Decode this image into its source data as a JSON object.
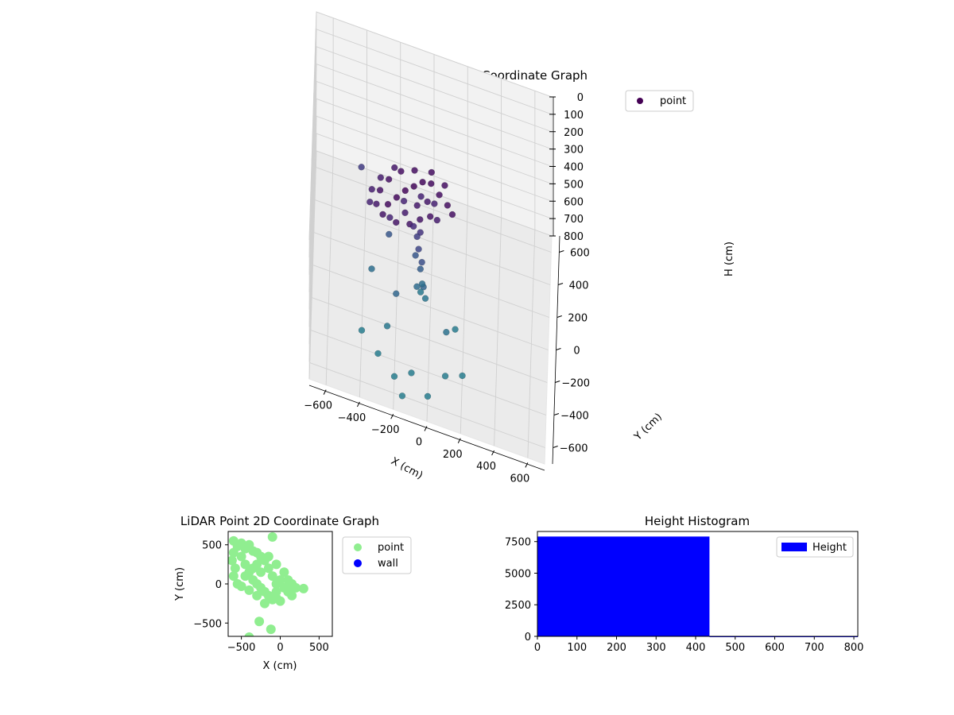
{
  "chart_data": [
    {
      "type": "scatter",
      "projection": "3d",
      "title": "LiDAR Point 3D Coordinate Graph",
      "xlabel": "X (cm)",
      "ylabel": "Y (cm)",
      "zlabel": "H (cm)",
      "xlim": [
        -700,
        700
      ],
      "ylim": [
        -700,
        700
      ],
      "zlim": [
        0,
        800
      ],
      "z_inverted": true,
      "xticks": [
        -600,
        -400,
        -200,
        0,
        200,
        400,
        600
      ],
      "yticks": [
        -600,
        -400,
        -200,
        0,
        200,
        400,
        600
      ],
      "zticks": [
        0,
        100,
        200,
        300,
        400,
        500,
        600,
        700,
        800
      ],
      "grid": true,
      "legend": {
        "placement": "top-right",
        "entries": [
          {
            "label": "point",
            "color": "#440154"
          }
        ]
      },
      "colormap": "viridis",
      "series": [
        {
          "name": "point",
          "points": [
            {
              "x": -250,
              "y": -100,
              "h": 200
            },
            {
              "x": -200,
              "y": -50,
              "h": 190
            },
            {
              "x": -150,
              "y": 0,
              "h": 180
            },
            {
              "x": -100,
              "y": 50,
              "h": 185
            },
            {
              "x": -50,
              "y": 100,
              "h": 190
            },
            {
              "x": 0,
              "y": 120,
              "h": 200
            },
            {
              "x": 50,
              "y": 80,
              "h": 210
            },
            {
              "x": 100,
              "y": 40,
              "h": 215
            },
            {
              "x": 130,
              "y": 0,
              "h": 220
            },
            {
              "x": -300,
              "y": 0,
              "h": 230
            },
            {
              "x": -250,
              "y": 80,
              "h": 225
            },
            {
              "x": -180,
              "y": 150,
              "h": 220
            },
            {
              "x": -100,
              "y": 180,
              "h": 215
            },
            {
              "x": 0,
              "y": 200,
              "h": 210
            },
            {
              "x": 80,
              "y": 160,
              "h": 220
            },
            {
              "x": -320,
              "y": -60,
              "h": 260
            },
            {
              "x": -280,
              "y": -120,
              "h": 250
            },
            {
              "x": -200,
              "y": -150,
              "h": 240
            },
            {
              "x": -120,
              "y": -120,
              "h": 250
            },
            {
              "x": -60,
              "y": -80,
              "h": 240
            },
            {
              "x": 0,
              "y": -50,
              "h": 230
            },
            {
              "x": -350,
              "y": 40,
              "h": 280
            },
            {
              "x": -300,
              "y": 120,
              "h": 270
            },
            {
              "x": -220,
              "y": 200,
              "h": 260
            },
            {
              "x": -150,
              "y": -40,
              "h": 270
            },
            {
              "x": -80,
              "y": 20,
              "h": 260
            },
            {
              "x": -20,
              "y": 60,
              "h": 255
            },
            {
              "x": 40,
              "y": -20,
              "h": 265
            },
            {
              "x": -360,
              "y": -20,
              "h": 300
            },
            {
              "x": -240,
              "y": -60,
              "h": 310
            },
            {
              "x": -160,
              "y": 60,
              "h": 300
            },
            {
              "x": -60,
              "y": 120,
              "h": 295
            },
            {
              "x": 20,
              "y": 100,
              "h": 290
            },
            {
              "x": -100,
              "y": -30,
              "h": 340
            },
            {
              "x": -60,
              "y": -10,
              "h": 380
            },
            {
              "x": -80,
              "y": 10,
              "h": 430
            },
            {
              "x": -70,
              "y": -20,
              "h": 470
            },
            {
              "x": -50,
              "y": -40,
              "h": 520
            },
            {
              "x": -90,
              "y": 30,
              "h": 560
            },
            {
              "x": -60,
              "y": 0,
              "h": 600
            },
            {
              "x": -40,
              "y": -60,
              "h": 640
            },
            {
              "x": -80,
              "y": -30,
              "h": 680
            },
            {
              "x": -50,
              "y": 20,
              "h": 700
            },
            {
              "x": -30,
              "y": -20,
              "h": 740
            },
            {
              "x": -60,
              "y": 40,
              "h": 770
            },
            {
              "x": -420,
              "y": 300,
              "h": 420
            },
            {
              "x": -250,
              "y": 100,
              "h": 560
            },
            {
              "x": -350,
              "y": 0,
              "h": 700
            },
            {
              "x": -200,
              "y": -150,
              "h": 650
            },
            {
              "x": 100,
              "y": -200,
              "h": 720
            },
            {
              "x": -250,
              "y": -250,
              "h": 760
            },
            {
              "x": 150,
              "y": -100,
              "h": 780
            },
            {
              "x": -400,
              "y": -300,
              "h": 790
            },
            {
              "x": -300,
              "y": -400,
              "h": 795
            },
            {
              "x": -100,
              "y": -450,
              "h": 790
            },
            {
              "x": 100,
              "y": -400,
              "h": 785
            },
            {
              "x": 200,
              "y": -350,
              "h": 795
            },
            {
              "x": -200,
              "y": -500,
              "h": 798
            },
            {
              "x": 0,
              "y": -550,
              "h": 796
            },
            {
              "x": -150,
              "y": -600,
              "h": 799
            }
          ]
        }
      ]
    },
    {
      "type": "scatter",
      "title": "LiDAR Point 2D Coordinate Graph",
      "xlabel": "X (cm)",
      "ylabel": "Y (cm)",
      "xlim": [
        -670,
        670
      ],
      "ylim": [
        -670,
        670
      ],
      "xticks": [
        -500,
        0,
        500
      ],
      "yticks": [
        -500,
        0,
        500
      ],
      "grid": false,
      "legend": {
        "placement": "outside-right",
        "entries": [
          {
            "label": "point",
            "color": "#90ee90"
          },
          {
            "label": "wall",
            "color": "#0000ff"
          }
        ]
      },
      "series": [
        {
          "name": "point",
          "color": "#90ee90",
          "points": [
            {
              "x": -600,
              "y": 550
            },
            {
              "x": -550,
              "y": 480
            },
            {
              "x": -500,
              "y": 520
            },
            {
              "x": -450,
              "y": 450
            },
            {
              "x": -400,
              "y": 500
            },
            {
              "x": -350,
              "y": 420
            },
            {
              "x": -300,
              "y": 400
            },
            {
              "x": -600,
              "y": 400
            },
            {
              "x": -620,
              "y": 300
            },
            {
              "x": -580,
              "y": 200
            },
            {
              "x": -600,
              "y": 100
            },
            {
              "x": -550,
              "y": 0
            },
            {
              "x": -500,
              "y": 350
            },
            {
              "x": -450,
              "y": 250
            },
            {
              "x": -400,
              "y": 150
            },
            {
              "x": -350,
              "y": 50
            },
            {
              "x": -300,
              "y": 250
            },
            {
              "x": -250,
              "y": 150
            },
            {
              "x": -200,
              "y": 300
            },
            {
              "x": -150,
              "y": 200
            },
            {
              "x": -100,
              "y": 100
            },
            {
              "x": -50,
              "y": 0
            },
            {
              "x": 0,
              "y": 50
            },
            {
              "x": 50,
              "y": -50
            },
            {
              "x": 100,
              "y": -100
            },
            {
              "x": 150,
              "y": -150
            },
            {
              "x": 200,
              "y": -50
            },
            {
              "x": 300,
              "y": -60
            },
            {
              "x": -300,
              "y": 0
            },
            {
              "x": -250,
              "y": -50
            },
            {
              "x": -200,
              "y": -100
            },
            {
              "x": -150,
              "y": -150
            },
            {
              "x": -100,
              "y": -200
            },
            {
              "x": -50,
              "y": -180
            },
            {
              "x": 0,
              "y": -220
            },
            {
              "x": -200,
              "y": -250
            },
            {
              "x": -300,
              "y": -150
            },
            {
              "x": -400,
              "y": -80
            },
            {
              "x": -500,
              "y": -30
            },
            {
              "x": -450,
              "y": 100
            },
            {
              "x": -350,
              "y": 200
            },
            {
              "x": -250,
              "y": 350
            },
            {
              "x": -150,
              "y": 350
            },
            {
              "x": -50,
              "y": 250
            },
            {
              "x": 50,
              "y": 150
            },
            {
              "x": 100,
              "y": 50
            },
            {
              "x": 150,
              "y": 0
            },
            {
              "x": -50,
              "y": -100
            },
            {
              "x": -100,
              "y": 600
            },
            {
              "x": -270,
              "y": -480
            },
            {
              "x": -120,
              "y": -580
            },
            {
              "x": -400,
              "y": -680
            }
          ]
        },
        {
          "name": "wall",
          "color": "#0000ff",
          "points": []
        }
      ]
    },
    {
      "type": "bar",
      "title": "Height Histogram",
      "xlabel": "",
      "ylabel": "",
      "xlim": [
        0,
        810
      ],
      "ylim": [
        0,
        8300
      ],
      "xticks": [
        0,
        100,
        200,
        300,
        400,
        500,
        600,
        700,
        800
      ],
      "yticks": [
        0,
        2500,
        5000,
        7500
      ],
      "grid": false,
      "legend": {
        "placement": "top-right",
        "entries": [
          {
            "label": "Height",
            "color": "#0000ff"
          }
        ]
      },
      "series": [
        {
          "name": "Height",
          "color": "#0000ff",
          "bins": [
            {
              "start": 0,
              "end": 435,
              "count": 7900
            },
            {
              "start": 435,
              "end": 810,
              "count": 30
            }
          ]
        }
      ]
    }
  ]
}
